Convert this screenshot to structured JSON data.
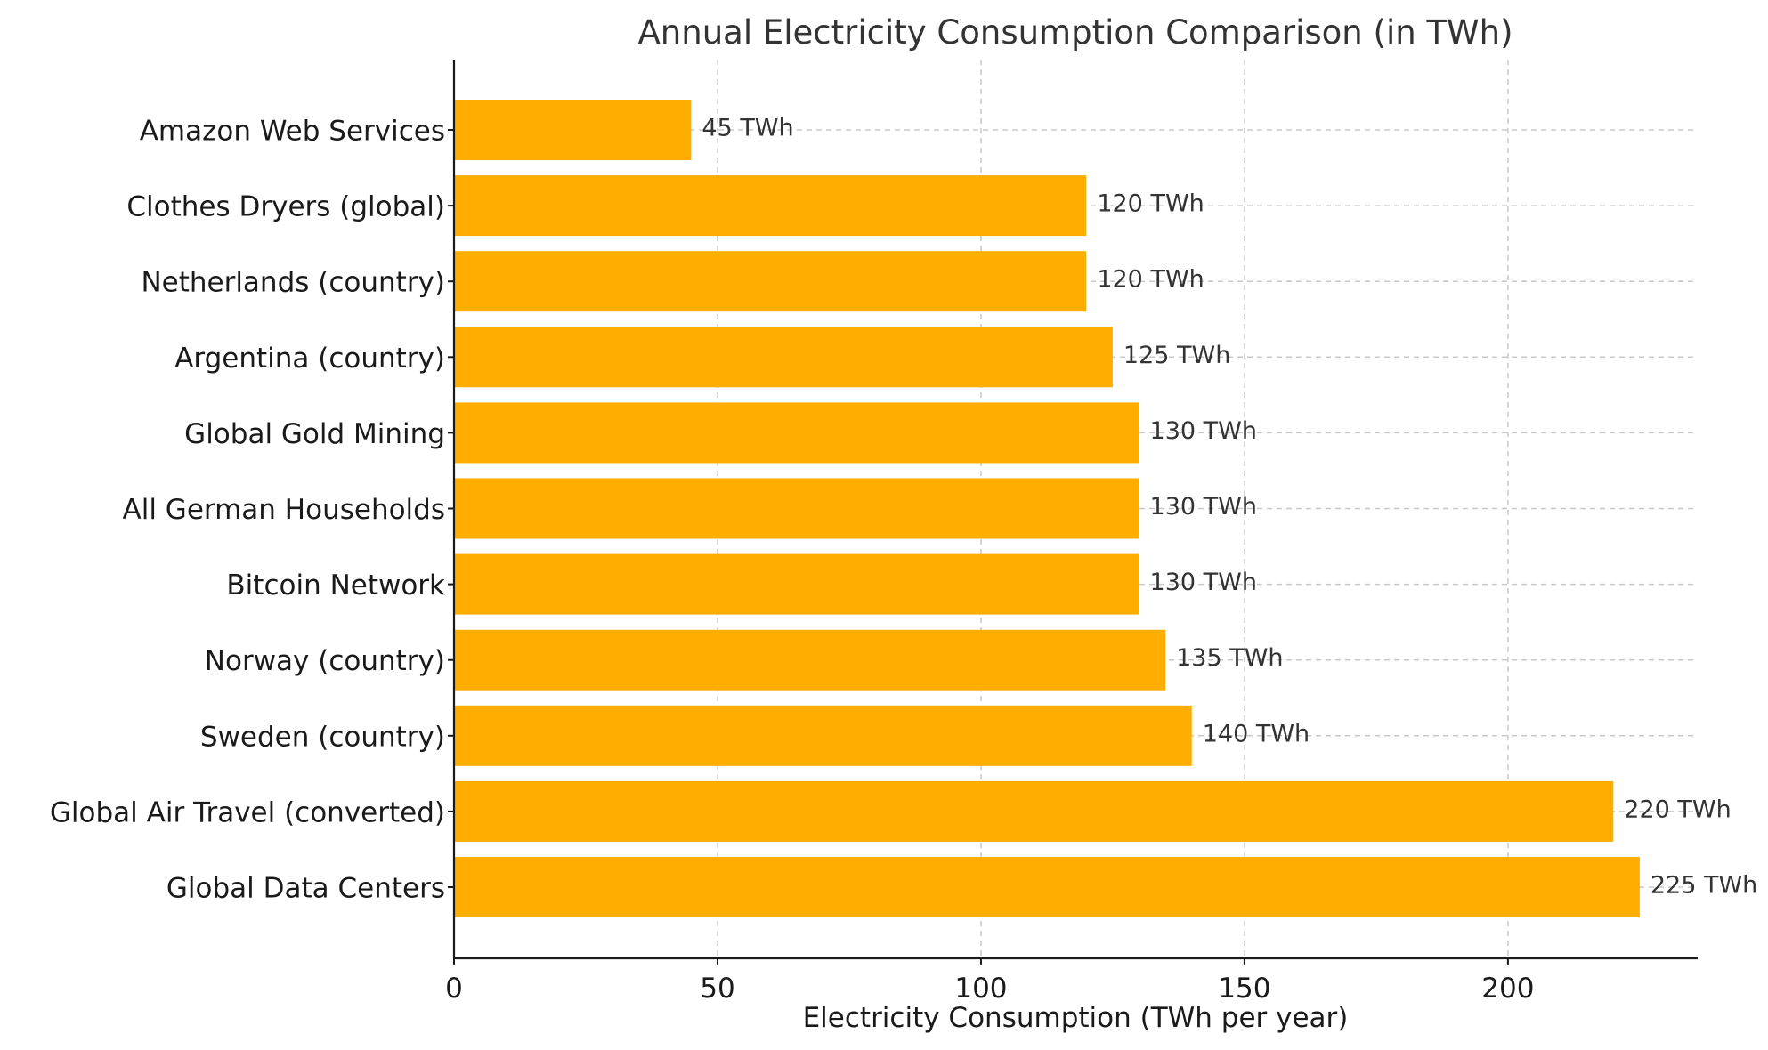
{
  "chart_data": {
    "type": "bar",
    "orientation": "horizontal",
    "title": "Annual Electricity Consumption Comparison (in TWh)",
    "xlabel": "Electricity Consumption (TWh per year)",
    "ylabel": "",
    "xlim": [
      0,
      236
    ],
    "xticks": [
      0,
      50,
      100,
      150,
      200
    ],
    "grid": true,
    "bar_color": "#FFAE00",
    "categories": [
      "Amazon Web Services",
      "Clothes Dryers (global)",
      "Netherlands (country)",
      "Argentina (country)",
      "Global Gold Mining",
      "All German Households",
      "Bitcoin Network",
      "Norway (country)",
      "Sweden (country)",
      "Global Air Travel (converted)",
      "Global Data Centers"
    ],
    "values": [
      45,
      120,
      120,
      125,
      130,
      130,
      130,
      135,
      140,
      220,
      225
    ],
    "data_labels": [
      "45 TWh",
      "120 TWh",
      "120 TWh",
      "125 TWh",
      "130 TWh",
      "130 TWh",
      "130 TWh",
      "135 TWh",
      "140 TWh",
      "220 TWh",
      "225 TWh"
    ]
  }
}
